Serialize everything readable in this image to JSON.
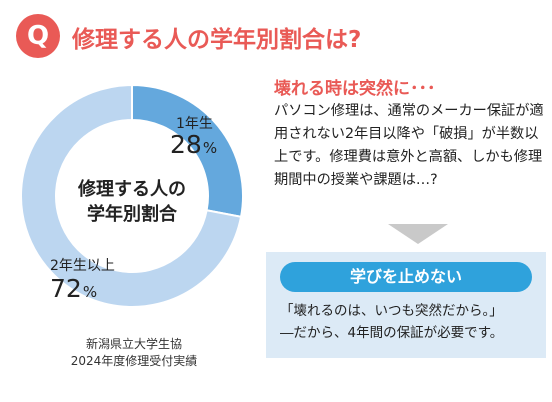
{
  "header": {
    "badge": "Q",
    "title": "修理する人の学年別割合は?"
  },
  "chart_data": {
    "type": "pie",
    "donut": true,
    "center_label_lines": [
      "修理する人の",
      "学年別割合"
    ],
    "slices": [
      {
        "label": "1年生",
        "value": 28,
        "display": "28",
        "unit": "%",
        "color": "#64a8dd"
      },
      {
        "label": "2年生以上",
        "value": 72,
        "display": "72",
        "unit": "%",
        "color": "#bcd6f0"
      }
    ],
    "source_lines": [
      "新潟県立大学生協",
      "2024年度修理受付実績"
    ]
  },
  "explanation": {
    "headline": "壊れる時は突然に･･･",
    "body": "パソコン修理は、通常のメーカー保証が適用されない2年目以降や「破損」が半数以上です。修理費は意外と高額、しかも修理期間中の授業や課題は…?"
  },
  "callout": {
    "pill": "学びを止めない",
    "lines": [
      "「壊れるのは、いつも突然だから。」",
      "―だから、4年間の保証が必要です。"
    ]
  },
  "colors": {
    "accent_red": "#e95a56",
    "pill_blue": "#2fa2dc",
    "callout_bg": "#dceaf6",
    "arrow_gray": "#c9c9c9"
  }
}
